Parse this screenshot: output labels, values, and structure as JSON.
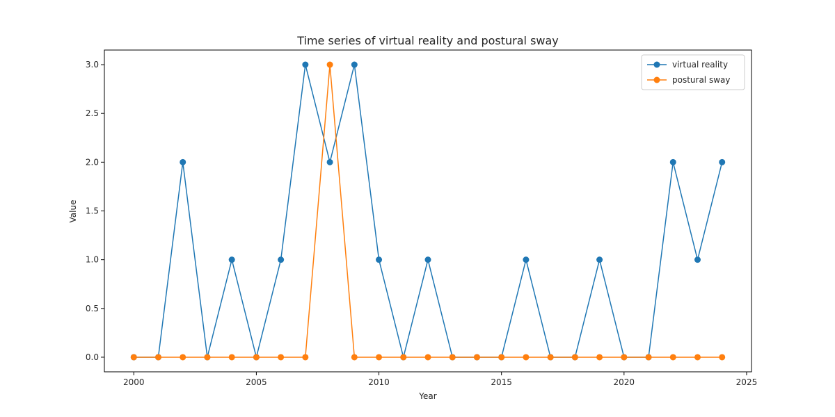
{
  "chart_data": {
    "type": "line",
    "title": "Time series of virtual reality and postural sway",
    "xlabel": "Year",
    "ylabel": "Value",
    "x": [
      2000,
      2001,
      2002,
      2003,
      2004,
      2005,
      2006,
      2007,
      2008,
      2009,
      2010,
      2011,
      2012,
      2013,
      2014,
      2015,
      2016,
      2017,
      2018,
      2019,
      2020,
      2021,
      2022,
      2023,
      2024
    ],
    "xlim": [
      1998.8,
      2025.2
    ],
    "ylim": [
      -0.15,
      3.15
    ],
    "xticks": [
      2000,
      2005,
      2010,
      2015,
      2020,
      2025
    ],
    "yticks": [
      0.0,
      0.5,
      1.0,
      1.5,
      2.0,
      2.5,
      3.0
    ],
    "xtick_labels": [
      "2000",
      "2005",
      "2010",
      "2015",
      "2020",
      "2025"
    ],
    "ytick_labels": [
      "0.0",
      "0.5",
      "1.0",
      "1.5",
      "2.0",
      "2.5",
      "3.0"
    ],
    "grid": false,
    "legend_position": "top-right",
    "series": [
      {
        "name": "virtual reality",
        "color": "#1f77b4",
        "values": [
          0,
          0,
          2,
          0,
          1,
          0,
          1,
          3,
          2,
          3,
          1,
          0,
          1,
          0,
          0,
          0,
          1,
          0,
          0,
          1,
          0,
          0,
          2,
          1,
          2
        ]
      },
      {
        "name": "postural sway",
        "color": "#ff7f0e",
        "values": [
          0,
          0,
          0,
          0,
          0,
          0,
          0,
          0,
          3,
          0,
          0,
          0,
          0,
          0,
          0,
          0,
          0,
          0,
          0,
          0,
          0,
          0,
          0,
          0,
          0
        ]
      }
    ]
  }
}
